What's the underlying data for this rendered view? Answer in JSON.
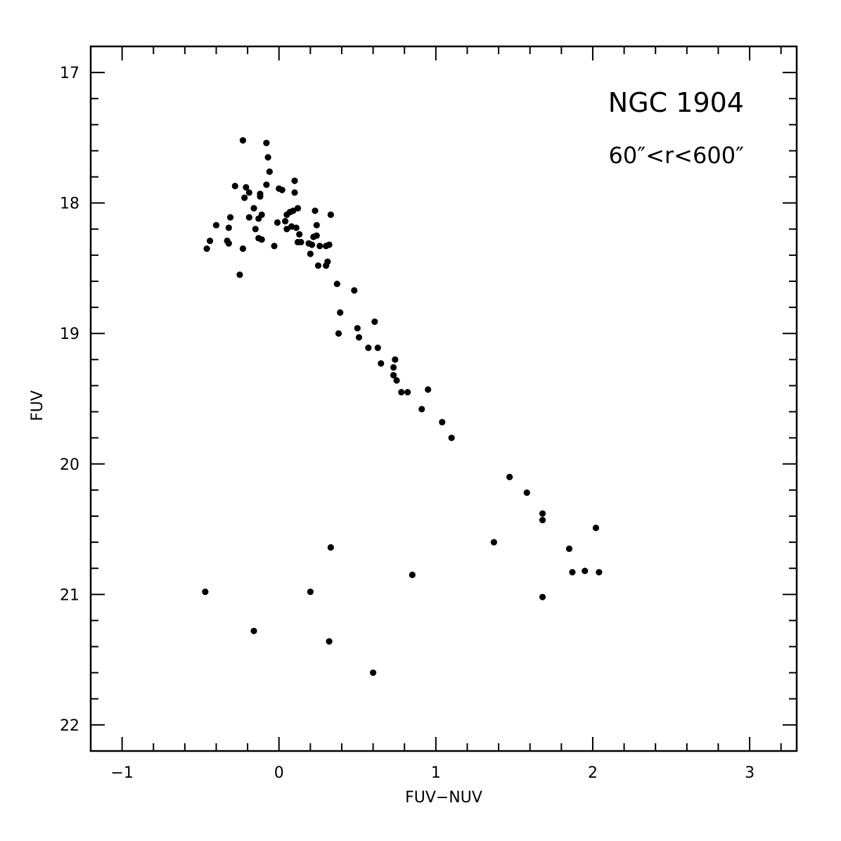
{
  "chart_data": {
    "type": "scatter",
    "title": "",
    "xlabel": "FUV−NUV",
    "ylabel": "FUV",
    "xlim": [
      -1.2,
      3.3
    ],
    "ylim": [
      22.2,
      16.8
    ],
    "y_inverted": true,
    "grid": false,
    "legend": "none",
    "x_ticks": [
      -1,
      0,
      1,
      2,
      3
    ],
    "x_tick_labels": [
      "−1",
      "0",
      "1",
      "2",
      "3"
    ],
    "y_ticks": [
      17,
      18,
      19,
      20,
      21,
      22
    ],
    "y_tick_labels": [
      "17",
      "18",
      "19",
      "20",
      "21",
      "22"
    ],
    "annotations": [
      "NGC 1904",
      "60″<r<600″"
    ],
    "series": [
      {
        "points": [
          [
            -0.23,
            17.52
          ],
          [
            -0.08,
            17.54
          ],
          [
            -0.07,
            17.65
          ],
          [
            -0.06,
            17.76
          ],
          [
            -0.28,
            17.87
          ],
          [
            -0.21,
            17.88
          ],
          [
            -0.19,
            17.92
          ],
          [
            -0.12,
            17.93
          ],
          [
            -0.08,
            17.86
          ],
          [
            0.0,
            17.89
          ],
          [
            0.02,
            17.9
          ],
          [
            0.1,
            17.83
          ],
          [
            0.1,
            17.92
          ],
          [
            -0.22,
            17.96
          ],
          [
            -0.12,
            17.95
          ],
          [
            -0.16,
            18.04
          ],
          [
            -0.19,
            18.11
          ],
          [
            -0.13,
            18.12
          ],
          [
            -0.11,
            18.09
          ],
          [
            -0.31,
            18.11
          ],
          [
            -0.4,
            18.17
          ],
          [
            -0.32,
            18.19
          ],
          [
            -0.15,
            18.2
          ],
          [
            -0.01,
            18.15
          ],
          [
            0.04,
            18.14
          ],
          [
            0.05,
            18.09
          ],
          [
            0.07,
            18.07
          ],
          [
            0.09,
            18.06
          ],
          [
            0.12,
            18.04
          ],
          [
            0.23,
            18.06
          ],
          [
            0.33,
            18.09
          ],
          [
            0.05,
            18.2
          ],
          [
            0.08,
            18.18
          ],
          [
            0.11,
            18.19
          ],
          [
            0.13,
            18.24
          ],
          [
            0.24,
            18.17
          ],
          [
            0.24,
            18.25
          ],
          [
            0.22,
            18.26
          ],
          [
            -0.13,
            18.27
          ],
          [
            -0.11,
            18.28
          ],
          [
            -0.44,
            18.29
          ],
          [
            -0.33,
            18.29
          ],
          [
            -0.32,
            18.31
          ],
          [
            -0.46,
            18.35
          ],
          [
            -0.23,
            18.35
          ],
          [
            -0.03,
            18.33
          ],
          [
            0.12,
            18.3
          ],
          [
            0.14,
            18.3
          ],
          [
            0.19,
            18.31
          ],
          [
            0.21,
            18.32
          ],
          [
            0.26,
            18.33
          ],
          [
            0.3,
            18.33
          ],
          [
            0.32,
            18.32
          ],
          [
            0.2,
            18.39
          ],
          [
            0.31,
            18.45
          ],
          [
            0.25,
            18.48
          ],
          [
            0.3,
            18.48
          ],
          [
            -0.25,
            18.55
          ],
          [
            0.37,
            18.62
          ],
          [
            0.48,
            18.67
          ],
          [
            0.39,
            18.84
          ],
          [
            0.61,
            18.91
          ],
          [
            0.5,
            18.96
          ],
          [
            0.38,
            19.0
          ],
          [
            0.51,
            19.03
          ],
          [
            0.57,
            19.11
          ],
          [
            0.63,
            19.11
          ],
          [
            0.65,
            19.23
          ],
          [
            0.74,
            19.2
          ],
          [
            0.73,
            19.26
          ],
          [
            0.73,
            19.32
          ],
          [
            0.75,
            19.36
          ],
          [
            0.78,
            19.45
          ],
          [
            0.82,
            19.45
          ],
          [
            0.95,
            19.43
          ],
          [
            0.91,
            19.58
          ],
          [
            1.04,
            19.68
          ],
          [
            1.1,
            19.8
          ],
          [
            1.47,
            20.1
          ],
          [
            1.58,
            20.22
          ],
          [
            1.68,
            20.38
          ],
          [
            1.68,
            20.43
          ],
          [
            2.02,
            20.49
          ],
          [
            1.37,
            20.6
          ],
          [
            1.85,
            20.65
          ],
          [
            1.87,
            20.83
          ],
          [
            1.95,
            20.82
          ],
          [
            2.04,
            20.83
          ],
          [
            1.68,
            21.02
          ],
          [
            0.33,
            20.64
          ],
          [
            0.85,
            20.85
          ],
          [
            -0.47,
            20.98
          ],
          [
            0.2,
            20.98
          ],
          [
            -0.16,
            21.28
          ],
          [
            0.32,
            21.36
          ],
          [
            0.6,
            21.6
          ]
        ]
      }
    ]
  }
}
